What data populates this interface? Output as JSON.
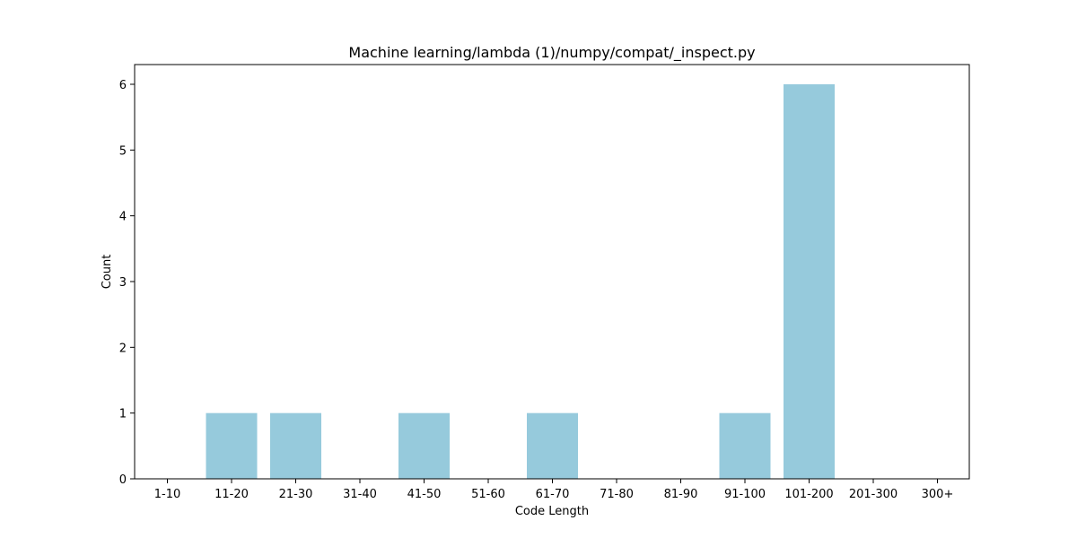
{
  "chart_data": {
    "type": "bar",
    "title": "Machine learning/lambda (1)/numpy/compat/_inspect.py",
    "xlabel": "Code Length",
    "ylabel": "Count",
    "categories": [
      "1-10",
      "11-20",
      "21-30",
      "31-40",
      "41-50",
      "51-60",
      "61-70",
      "71-80",
      "81-90",
      "91-100",
      "101-200",
      "201-300",
      "300+"
    ],
    "values": [
      0,
      1,
      1,
      0,
      1,
      0,
      1,
      0,
      0,
      1,
      6,
      0,
      0
    ],
    "ylim": [
      0,
      6.3
    ],
    "yticks": [
      0,
      1,
      2,
      3,
      4,
      5,
      6
    ],
    "bar_color": "#96cadc",
    "grid": false,
    "legend": "none"
  }
}
